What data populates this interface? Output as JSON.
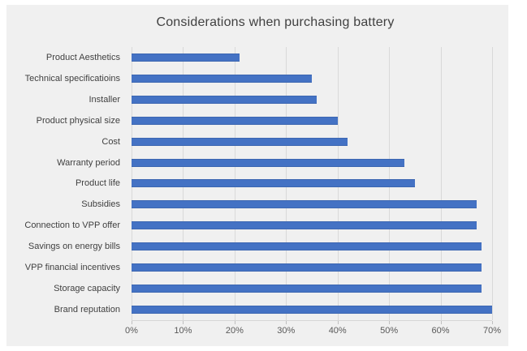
{
  "title": "Considerations when purchasing battery",
  "chart_data": {
    "type": "bar",
    "orientation": "horizontal",
    "title": "Considerations when purchasing battery",
    "categories": [
      "Product Aesthetics",
      "Technical specificatioins",
      "Installer",
      "Product physical size",
      "Cost",
      "Warranty period",
      "Product life",
      "Subsidies",
      "Connection to VPP offer",
      "Savings on energy bills",
      "VPP financial incentives",
      "Storage capacity",
      "Brand reputation"
    ],
    "values": [
      21,
      35,
      36,
      40,
      42,
      53,
      55,
      67,
      67,
      68,
      68,
      68,
      70
    ],
    "value_unit": "%",
    "x_tick_labels": [
      "0%",
      "10%",
      "20%",
      "30%",
      "40%",
      "50%",
      "60%",
      "70%"
    ],
    "xlim": [
      0,
      70
    ],
    "grid": true,
    "legend": false,
    "bar_color": "#4472c4",
    "plot_background_color": "#f0f0f0",
    "gridline_color": "#d9d9d9",
    "label_color": "#3f3f3f",
    "axis_label_color": "#595959",
    "title_color": "#404040"
  }
}
